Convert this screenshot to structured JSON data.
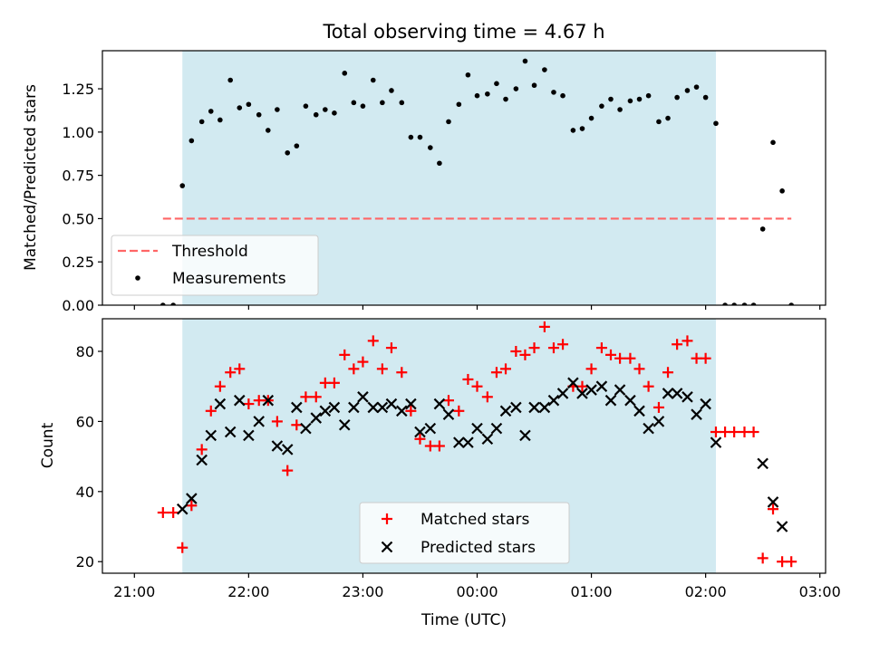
{
  "title": "Total observing time = 4.67 h",
  "colors": {
    "shade": "#add8e6",
    "threshold": "#ff6666",
    "matched": "#ff0000",
    "predicted": "#000000",
    "measurement": "#000000"
  },
  "chart_data": [
    {
      "type": "scatter",
      "ylabel": "Matched/Predicted stars",
      "xlim": [
        -0.28,
        6.05
      ],
      "ylim": [
        0.0,
        1.47
      ],
      "yticks": [
        "0.00",
        "0.25",
        "0.50",
        "0.75",
        "1.00",
        "1.25"
      ],
      "ytick_values": [
        0,
        0.25,
        0.5,
        0.75,
        1.0,
        1.25
      ],
      "shaded_x": [
        0.42,
        5.09
      ],
      "threshold": {
        "name": "Threshold",
        "y": 0.5,
        "x": [
          0.25,
          5.75
        ],
        "style": "dashed"
      },
      "series": [
        {
          "name": "Measurements",
          "x": [
            0.25,
            0.34,
            0.42,
            0.5,
            0.59,
            0.67,
            0.75,
            0.84,
            0.92,
            1.0,
            1.09,
            1.17,
            1.25,
            1.34,
            1.42,
            1.5,
            1.59,
            1.67,
            1.75,
            1.84,
            1.92,
            2.0,
            2.09,
            2.17,
            2.25,
            2.34,
            2.42,
            2.5,
            2.59,
            2.67,
            2.75,
            2.84,
            2.92,
            3.0,
            3.09,
            3.17,
            3.25,
            3.34,
            3.42,
            3.5,
            3.59,
            3.67,
            3.75,
            3.84,
            3.92,
            4.0,
            4.09,
            4.17,
            4.25,
            4.34,
            4.42,
            4.5,
            4.59,
            4.67,
            4.75,
            4.84,
            4.92,
            5.0,
            5.09,
            5.17,
            5.25,
            5.34,
            5.42,
            5.5,
            5.59,
            5.67,
            5.75
          ],
          "y": [
            0.0,
            0.0,
            0.69,
            0.95,
            1.06,
            1.12,
            1.07,
            1.3,
            1.14,
            1.16,
            1.1,
            1.01,
            1.13,
            0.88,
            0.92,
            1.15,
            1.1,
            1.13,
            1.11,
            1.34,
            1.17,
            1.15,
            1.3,
            1.17,
            1.24,
            1.17,
            0.97,
            0.97,
            0.91,
            0.82,
            1.06,
            1.16,
            1.33,
            1.21,
            1.22,
            1.28,
            1.19,
            1.25,
            1.41,
            1.27,
            1.36,
            1.23,
            1.21,
            1.01,
            1.02,
            1.08,
            1.15,
            1.19,
            1.13,
            1.18,
            1.19,
            1.21,
            1.06,
            1.08,
            1.2,
            1.24,
            1.26,
            1.2,
            1.05,
            0.0,
            0.0,
            0.0,
            0.0,
            0.44,
            0.94,
            0.66,
            0.0
          ]
        }
      ]
    },
    {
      "type": "scatter",
      "ylabel": "Count",
      "xlabel": "Time (UTC)",
      "xlim": [
        -0.28,
        6.05
      ],
      "ylim": [
        16.7,
        89.3
      ],
      "xticks": [
        "21:00",
        "22:00",
        "23:00",
        "00:00",
        "01:00",
        "02:00",
        "03:00"
      ],
      "xtick_values": [
        0,
        1,
        2,
        3,
        4,
        5,
        6
      ],
      "yticks": [
        "20",
        "40",
        "60",
        "80"
      ],
      "ytick_values": [
        20,
        40,
        60,
        80
      ],
      "shaded_x": [
        0.42,
        5.09
      ],
      "series": [
        {
          "name": "Matched stars",
          "marker": "+",
          "x": [
            0.25,
            0.34,
            0.42,
            0.5,
            0.59,
            0.67,
            0.75,
            0.84,
            0.92,
            1.0,
            1.09,
            1.17,
            1.25,
            1.34,
            1.42,
            1.5,
            1.59,
            1.67,
            1.75,
            1.84,
            1.92,
            2.0,
            2.09,
            2.17,
            2.25,
            2.34,
            2.42,
            2.5,
            2.59,
            2.67,
            2.75,
            2.84,
            2.92,
            3.0,
            3.09,
            3.17,
            3.25,
            3.34,
            3.42,
            3.5,
            3.59,
            3.67,
            3.75,
            3.84,
            3.92,
            4.0,
            4.09,
            4.17,
            4.25,
            4.34,
            4.42,
            4.5,
            4.59,
            4.67,
            4.75,
            4.84,
            4.92,
            5.0,
            5.09,
            5.17,
            5.25,
            5.34,
            5.42,
            5.5,
            5.59,
            5.67,
            5.75
          ],
          "y": [
            34,
            34,
            24,
            36,
            52,
            63,
            70,
            74,
            75,
            65,
            66,
            66,
            60,
            46,
            59,
            67,
            67,
            71,
            71,
            79,
            75,
            77,
            83,
            75,
            81,
            74,
            63,
            55,
            53,
            53,
            66,
            63,
            72,
            70,
            67,
            74,
            75,
            80,
            79,
            81,
            87,
            81,
            82,
            70,
            70,
            75,
            81,
            79,
            78,
            78,
            75,
            70,
            64,
            74,
            82,
            83,
            78,
            78,
            57,
            57,
            57,
            57,
            57,
            21,
            35,
            20,
            20
          ]
        },
        {
          "name": "Predicted stars",
          "marker": "x",
          "x": [
            0.42,
            0.5,
            0.59,
            0.67,
            0.75,
            0.84,
            0.92,
            1.0,
            1.09,
            1.17,
            1.25,
            1.34,
            1.42,
            1.5,
            1.59,
            1.67,
            1.75,
            1.84,
            1.92,
            2.0,
            2.09,
            2.17,
            2.25,
            2.34,
            2.42,
            2.5,
            2.59,
            2.67,
            2.75,
            2.84,
            2.92,
            3.0,
            3.09,
            3.17,
            3.25,
            3.34,
            3.42,
            3.5,
            3.59,
            3.67,
            3.75,
            3.84,
            3.92,
            4.0,
            4.09,
            4.17,
            4.25,
            4.34,
            4.42,
            4.5,
            4.59,
            4.67,
            4.75,
            4.84,
            4.92,
            5.0,
            5.09,
            5.5,
            5.59,
            5.67
          ],
          "y": [
            35,
            38,
            49,
            56,
            65,
            57,
            66,
            56,
            60,
            66,
            53,
            52,
            64,
            58,
            61,
            63,
            64,
            59,
            64,
            67,
            64,
            64,
            65,
            63,
            65,
            57,
            58,
            65,
            62,
            54,
            54,
            58,
            55,
            58,
            63,
            64,
            56,
            64,
            64,
            66,
            68,
            71,
            68,
            69,
            70,
            66,
            69,
            66,
            63,
            58,
            60,
            68,
            68,
            67,
            62,
            65,
            54,
            48,
            37,
            30
          ]
        }
      ]
    }
  ]
}
